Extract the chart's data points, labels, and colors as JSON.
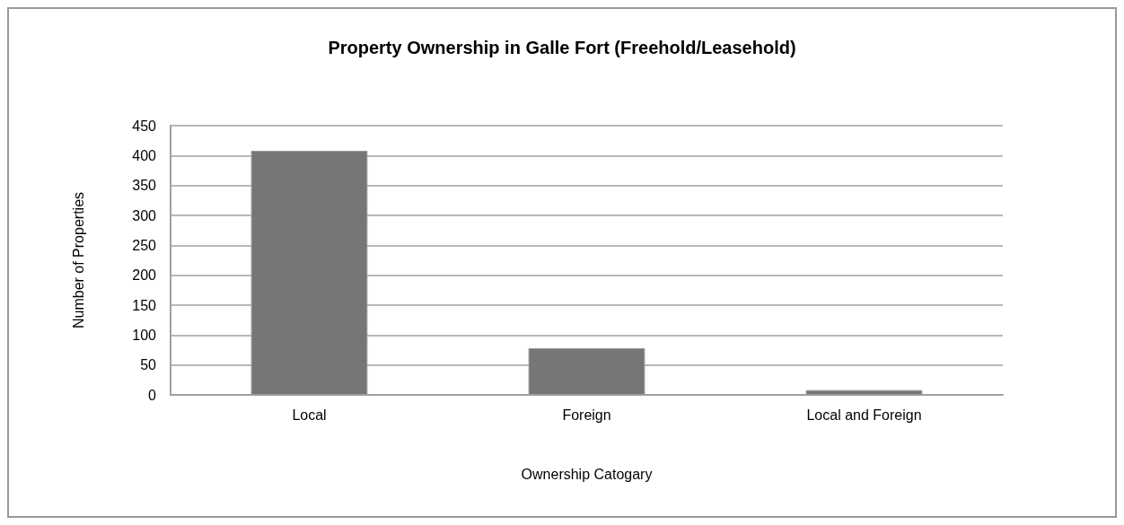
{
  "chart_data": {
    "type": "bar",
    "title": "Property Ownership in Galle Fort (Freehold/Leasehold)",
    "xlabel": "Ownership Catogary",
    "ylabel": "Number of Properties",
    "categories": [
      "Local",
      "Foreign",
      "Local and Foreign"
    ],
    "values": [
      408,
      78,
      8
    ],
    "color": "#767676",
    "ylim": [
      0,
      450
    ],
    "yticks": [
      0,
      50,
      100,
      150,
      200,
      250,
      300,
      350,
      400,
      450
    ],
    "grid": "y"
  }
}
